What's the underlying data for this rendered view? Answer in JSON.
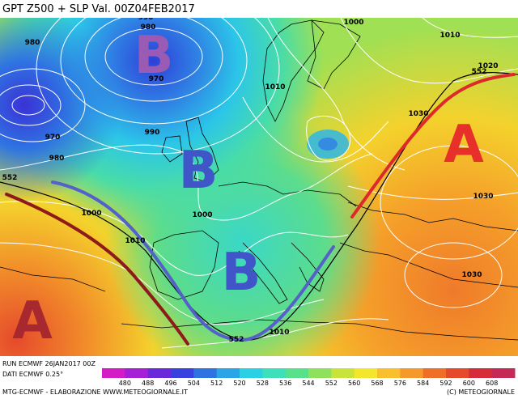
{
  "header": {
    "title": "GPT Z500 + SLP Val. 00Z04FEB2017"
  },
  "footer": {
    "run": "RUN ECMWF 26JAN2017 00Z",
    "dati": "DATI ECMWF 0.25°",
    "credit_left": "MTG-ECMWF - ELABORAZIONE WWW.METEOGIORNALE.IT",
    "credit_right": "(C) METEOGIORNALE"
  },
  "pressure_centers": [
    {
      "letter": "B",
      "color": "#9a5bb5"
    },
    {
      "letter": "B",
      "color": "#3f55c8"
    },
    {
      "letter": "B",
      "color": "#3f55c8"
    },
    {
      "letter": "A",
      "color": "#e8302a"
    },
    {
      "letter": "A",
      "color": "#a82830"
    }
  ],
  "isobar_labels": [
    "990",
    "980",
    "980",
    "970",
    "970",
    "980",
    "990",
    "1010",
    "1000",
    "1010",
    "1000",
    "1000",
    "1010",
    "1010",
    "1020",
    "1030",
    "1030",
    "1030",
    "1020",
    "552",
    "552",
    "552"
  ],
  "legend": {
    "ticks": [
      "480",
      "488",
      "496",
      "504",
      "512",
      "520",
      "528",
      "536",
      "544",
      "552",
      "560",
      "568",
      "576",
      "584",
      "592",
      "600",
      "608"
    ],
    "colors": [
      "#d41cc6",
      "#a61fd6",
      "#6a2ad9",
      "#3842de",
      "#2f73e2",
      "#2aa6e8",
      "#2cd0e4",
      "#3de0b8",
      "#59e08a",
      "#8fe15d",
      "#c8e33a",
      "#f2e72c",
      "#f7c02c",
      "#f59a2a",
      "#ef6e28",
      "#e64a2c",
      "#d62c3a",
      "#c42a55"
    ]
  }
}
